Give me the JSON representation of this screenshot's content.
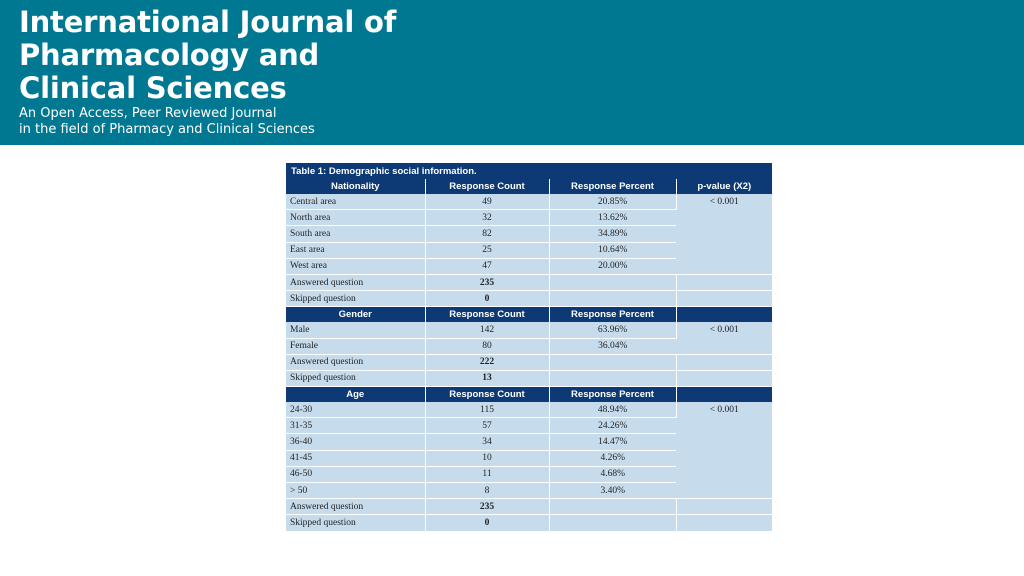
{
  "header": {
    "title_lines": [
      "International Journal of",
      "Pharmacology and",
      "Clinical Sciences"
    ],
    "subtitle_lines": [
      "An Open Access, Peer Reviewed Journal",
      "in the field of Pharmacy and Clinical Sciences"
    ],
    "background_color": "#007891"
  },
  "table": {
    "caption": "Table 1: Demographic social information.",
    "header_color": "#0d3a75",
    "cell_color": "#c6dced",
    "sections": [
      {
        "headers": [
          "Nationality",
          "Response Count",
          "Response Percent",
          "p-value (X2)"
        ],
        "p_value": "< 0.001",
        "rows": [
          [
            "Central area",
            "49",
            "20.85%"
          ],
          [
            "North area",
            "32",
            "13.62%"
          ],
          [
            "South area",
            "82",
            "34.89%"
          ],
          [
            "East area",
            "25",
            "10.64%"
          ],
          [
            "West area",
            "47",
            "20.00%"
          ],
          [
            "Answered question",
            "235",
            ""
          ],
          [
            "Skipped question",
            "0",
            ""
          ]
        ]
      },
      {
        "headers": [
          "Gender",
          "Response Count",
          "Response Percent",
          ""
        ],
        "p_value": "< 0.001",
        "rows": [
          [
            "Male",
            "142",
            "63.96%"
          ],
          [
            "Female",
            "80",
            "36.04%"
          ],
          [
            "Answered question",
            "222",
            ""
          ],
          [
            "Skipped question",
            "13",
            ""
          ]
        ]
      },
      {
        "headers": [
          "Age",
          "Response Count",
          "Response Percent",
          ""
        ],
        "p_value": "< 0.001",
        "rows": [
          [
            "24-30",
            "115",
            "48.94%"
          ],
          [
            "31-35",
            "57",
            "24.26%"
          ],
          [
            "36-40",
            "34",
            "14.47%"
          ],
          [
            "41-45",
            "10",
            "4.26%"
          ],
          [
            "46-50",
            "11",
            "4.68%"
          ],
          [
            "> 50",
            "8",
            "3.40%"
          ],
          [
            "Answered question",
            "235",
            ""
          ],
          [
            "Skipped question",
            "0",
            ""
          ]
        ]
      }
    ]
  }
}
